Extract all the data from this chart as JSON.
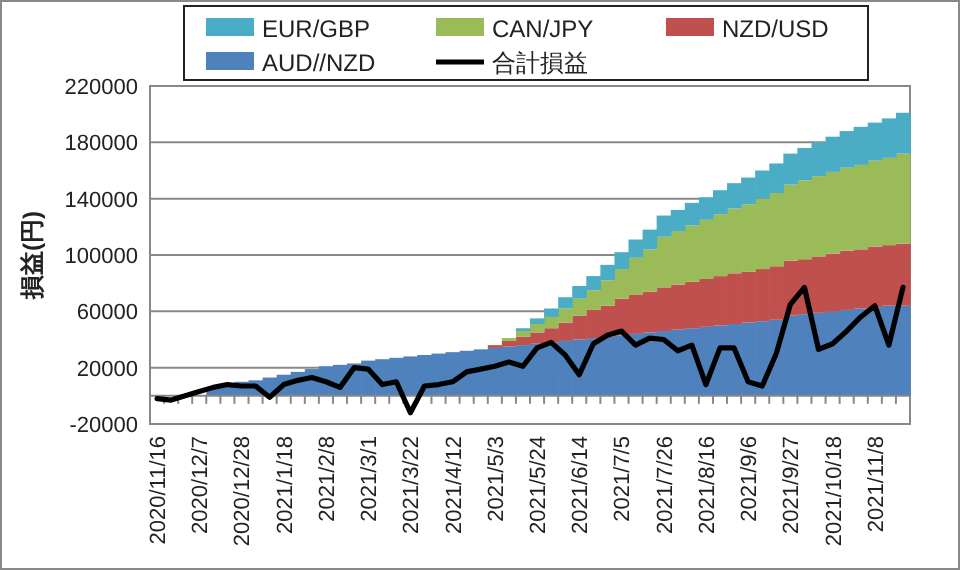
{
  "chart_data": {
    "type": "bar",
    "stacked": true,
    "ylabel": "損益(円)",
    "grid": "y",
    "legend": "top",
    "ylim": [
      -20000,
      220000
    ],
    "yticks": [
      -20000,
      20000,
      60000,
      100000,
      140000,
      180000,
      220000
    ],
    "categories": [
      "2020/11/16",
      null,
      null,
      "2020/12/7",
      null,
      null,
      "2020/12/28",
      null,
      null,
      "2021/1/18",
      null,
      null,
      "2021/2/8",
      null,
      null,
      "2021/3/1",
      null,
      null,
      "2021/3/22",
      null,
      null,
      "2021/4/12",
      null,
      null,
      "2021/5/3",
      null,
      null,
      "2021/5/24",
      null,
      null,
      "2021/6/14",
      null,
      null,
      "2021/7/5",
      null,
      null,
      "2021/7/26",
      null,
      null,
      "2021/8/16",
      null,
      null,
      "2021/9/6",
      null,
      null,
      "2021/9/27",
      null,
      null,
      "2021/10/18",
      null,
      null,
      "2021/11/8",
      null,
      null
    ],
    "series": [
      {
        "name": "AUD//NZD",
        "color": "#4f81bd",
        "values": [
          null,
          0,
          null,
          null,
          6000,
          8000,
          10000,
          11000,
          13000,
          15000,
          17000,
          19000,
          21000,
          22000,
          23000,
          25000,
          26000,
          27000,
          28000,
          29000,
          30000,
          31000,
          32000,
          33000,
          34000,
          35000,
          36000,
          37000,
          38000,
          39000,
          40000,
          41000,
          42000,
          43000,
          44000,
          45000,
          46000,
          47000,
          48000,
          49000,
          50000,
          51000,
          52000,
          53000,
          54000,
          57000,
          58000,
          59000,
          60000,
          61000,
          62000,
          63000,
          64000,
          64000
        ]
      },
      {
        "name": "NZD/USD",
        "color": "#c0504d",
        "values": [
          0,
          0,
          0,
          0,
          0,
          0,
          0,
          0,
          0,
          0,
          0,
          0,
          0,
          0,
          0,
          0,
          0,
          0,
          0,
          0,
          0,
          0,
          0,
          0,
          2000,
          4000,
          6000,
          8000,
          10000,
          13000,
          17000,
          20000,
          22000,
          26000,
          28000,
          29000,
          31000,
          32000,
          33000,
          34000,
          35000,
          36000,
          36000,
          37000,
          38000,
          39000,
          39000,
          40000,
          41000,
          42000,
          42000,
          43000,
          43000,
          44000
        ]
      },
      {
        "name": "CAN/JPY",
        "color": "#9bbb59",
        "values": [
          0,
          0,
          0,
          0,
          0,
          0,
          0,
          0,
          0,
          0,
          0,
          0,
          0,
          0,
          0,
          0,
          0,
          0,
          0,
          0,
          0,
          0,
          0,
          0,
          0,
          2000,
          4000,
          6000,
          8000,
          10000,
          12000,
          14000,
          18000,
          21000,
          26000,
          30000,
          36000,
          38000,
          40000,
          42000,
          44000,
          46000,
          48000,
          50000,
          52000,
          54000,
          56000,
          57000,
          58000,
          59000,
          60000,
          61000,
          62000,
          64000
        ]
      },
      {
        "name": "EUR/GBP",
        "color": "#4bacc6",
        "values": [
          0,
          0,
          0,
          0,
          0,
          0,
          0,
          0,
          0,
          0,
          0,
          0,
          0,
          0,
          0,
          0,
          0,
          0,
          0,
          0,
          0,
          0,
          0,
          0,
          0,
          0,
          2000,
          4000,
          6000,
          8000,
          9000,
          10000,
          11000,
          12000,
          13000,
          14000,
          15000,
          15000,
          16000,
          16000,
          17000,
          18000,
          19000,
          20000,
          21000,
          22000,
          23000,
          24000,
          25000,
          26000,
          27000,
          27000,
          28000,
          29000
        ]
      },
      {
        "name": "合計損益",
        "type": "line",
        "color": "#000000",
        "values": [
          -2000,
          -3000,
          0,
          3000,
          6000,
          8000,
          7000,
          7000,
          -1000,
          8000,
          11000,
          13000,
          10000,
          6000,
          20000,
          19000,
          8000,
          10000,
          -12000,
          7000,
          8000,
          10000,
          17000,
          19000,
          21000,
          24000,
          21000,
          34000,
          38000,
          29000,
          15000,
          37000,
          43000,
          46000,
          36000,
          41000,
          40000,
          32000,
          36000,
          8000,
          34000,
          34000,
          10000,
          7000,
          30000,
          65000,
          77000,
          33000,
          37000,
          46000,
          56000,
          64000,
          36000,
          77000
        ]
      }
    ]
  }
}
